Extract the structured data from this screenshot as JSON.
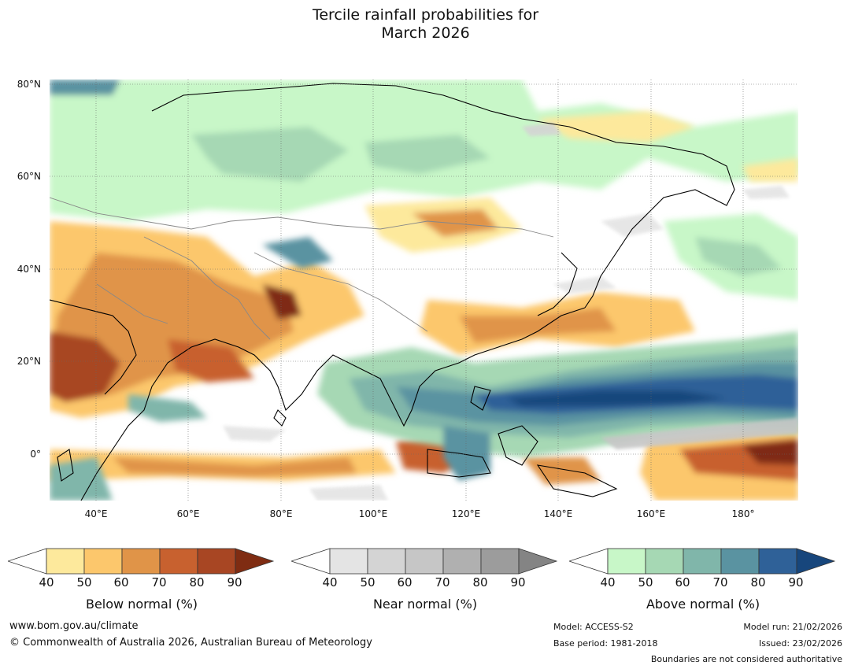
{
  "title": {
    "line1": "Tercile rainfall probabilities for",
    "line2": "March 2026"
  },
  "map": {
    "lat_labels": [
      "80°N",
      "60°N",
      "40°N",
      "20°N",
      "0°"
    ],
    "lon_labels": [
      "40°E",
      "60°E",
      "80°E",
      "100°E",
      "120°E",
      "140°E",
      "160°E",
      "180°"
    ],
    "colors": {
      "below": [
        "#fde99c",
        "#fcc76c",
        "#e09448",
        "#c8612f",
        "#a84623",
        "#7f2c12"
      ],
      "near": [
        "#e4e4e4",
        "#d4d4d4",
        "#c6c6c6",
        "#b0b0b0",
        "#9c9c9c",
        "#848484"
      ],
      "above": [
        "#c8f7c8",
        "#a6d8b4",
        "#80b6aa",
        "#5a93a1",
        "#2f6198",
        "#17467c"
      ]
    }
  },
  "colorbars": [
    {
      "title": "Below normal (%)",
      "ticks": [
        "40",
        "50",
        "60",
        "70",
        "80",
        "90"
      ]
    },
    {
      "title": "Near normal (%)",
      "ticks": [
        "40",
        "50",
        "60",
        "70",
        "80",
        "90"
      ]
    },
    {
      "title": "Above normal (%)",
      "ticks": [
        "40",
        "50",
        "60",
        "70",
        "80",
        "90"
      ]
    }
  ],
  "footer": {
    "url": "www.bom.gov.au/climate",
    "copyright": "© Commonwealth of Australia 2026, Australian Bureau of Meteorology",
    "model": "Model: ACCESS-S2",
    "base_period": "Base period: 1981-2018",
    "model_run": "Model run: 21/02/2026",
    "issued": "Issued: 23/02/2026",
    "disclaimer": "Boundaries are not considered authoritative"
  }
}
